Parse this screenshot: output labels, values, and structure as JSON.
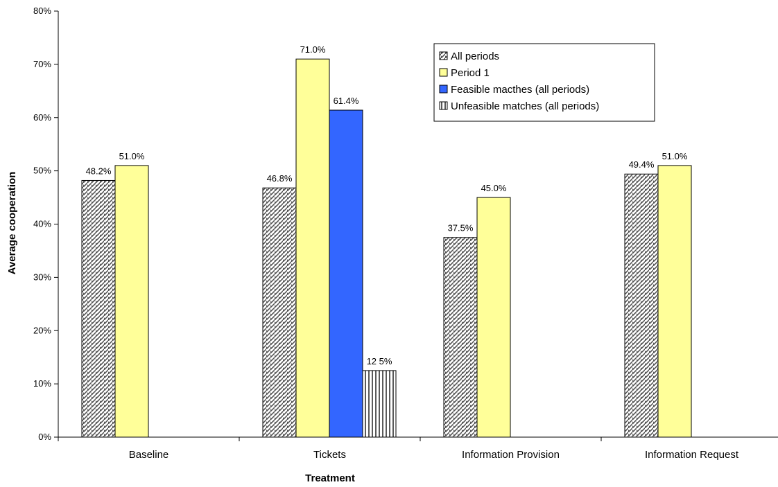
{
  "chart_data": {
    "type": "bar",
    "xlabel": "Treatment",
    "ylabel": "Average cooperation",
    "ylim": [
      0,
      80
    ],
    "yticks": [
      "0%",
      "10%",
      "20%",
      "30%",
      "40%",
      "50%",
      "60%",
      "70%",
      "80%"
    ],
    "categories": [
      "Baseline",
      "Tickets",
      "Information Provision",
      "Information Request"
    ],
    "legend_position": "top-right",
    "grid": false,
    "series": [
      {
        "name": "All periods",
        "pattern": "diagonal-hatch",
        "color": "#808080",
        "values": [
          48.2,
          46.8,
          37.5,
          49.4
        ],
        "labels": [
          "48.2%",
          "46.8%",
          "37.5%",
          "49.4%"
        ]
      },
      {
        "name": "Period 1",
        "pattern": "solid",
        "color": "#FFFF99",
        "values": [
          51.0,
          71.0,
          45.0,
          51.0
        ],
        "labels": [
          "51.0%",
          "71.0%",
          "45.0%",
          "51.0%"
        ]
      },
      {
        "name": "Feasible macthes (all periods)",
        "pattern": "solid",
        "color": "#3366FF",
        "values": [
          null,
          61.4,
          null,
          null
        ],
        "labels": [
          "",
          "61.4%",
          "",
          ""
        ]
      },
      {
        "name": "Unfeasible matches (all periods)",
        "pattern": "vertical-lines",
        "color": "#000000",
        "values": [
          null,
          12.5,
          null,
          null
        ],
        "labels": [
          "",
          "12 5%",
          "",
          ""
        ]
      }
    ]
  }
}
